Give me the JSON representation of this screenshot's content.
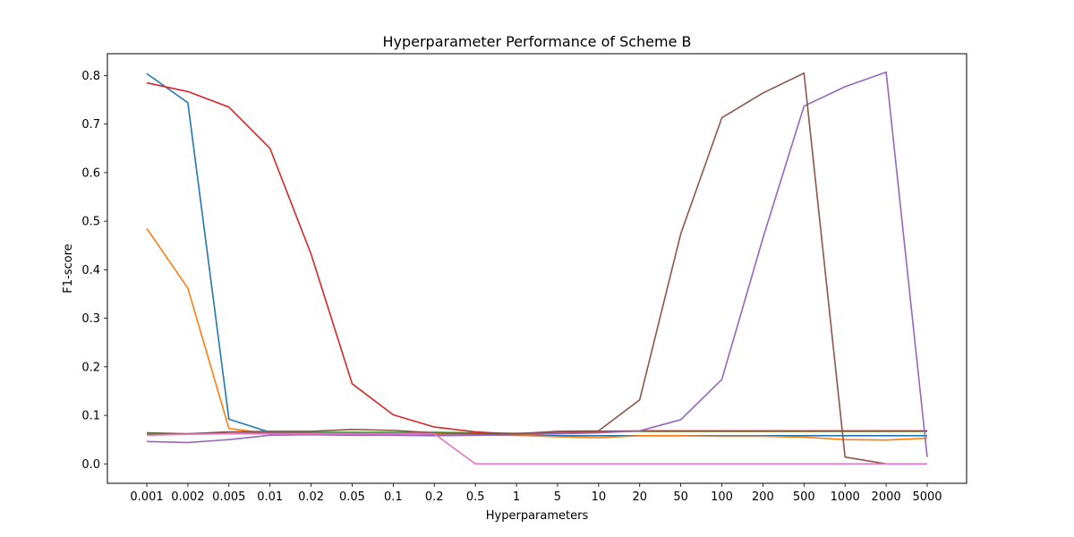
{
  "chart_data": {
    "type": "line",
    "title": "Hyperparameter Performance of Scheme B",
    "xlabel": "Hyperparameters",
    "ylabel": "F1-score",
    "categories": [
      "0.001",
      "0.002",
      "0.005",
      "0.01",
      "0.02",
      "0.05",
      "0.1",
      "0.2",
      "0.5",
      "1",
      "5",
      "10",
      "20",
      "50",
      "100",
      "200",
      "500",
      "1000",
      "2000",
      "5000"
    ],
    "ylim": [
      -0.04,
      0.845
    ],
    "yticks": [
      0.0,
      0.1,
      0.2,
      0.3,
      0.4,
      0.5,
      0.6,
      0.7,
      0.8
    ],
    "ytick_labels": [
      "0.0",
      "0.1",
      "0.2",
      "0.3",
      "0.4",
      "0.5",
      "0.6",
      "0.7",
      "0.8"
    ],
    "grid": false,
    "series": [
      {
        "color": "#1f77b4",
        "values": [
          0.804,
          0.744,
          0.092,
          0.065,
          0.062,
          0.062,
          0.062,
          0.061,
          0.06,
          0.059,
          0.058,
          0.058,
          0.058,
          0.058,
          0.058,
          0.058,
          0.058,
          0.058,
          0.058,
          0.058
        ]
      },
      {
        "color": "#ff7f0e",
        "values": [
          0.485,
          0.362,
          0.073,
          0.062,
          0.062,
          0.062,
          0.062,
          0.062,
          0.061,
          0.059,
          0.056,
          0.054,
          0.058,
          0.058,
          0.057,
          0.057,
          0.055,
          0.05,
          0.049,
          0.053
        ]
      },
      {
        "color": "#2ca02c",
        "values": [
          0.061,
          0.062,
          0.063,
          0.064,
          0.065,
          0.065,
          0.065,
          0.065,
          0.064,
          0.063,
          0.065,
          0.066,
          0.067,
          0.067,
          0.067,
          0.067,
          0.067,
          0.067,
          0.067,
          0.067
        ]
      },
      {
        "color": "#d62728",
        "values": [
          0.785,
          0.767,
          0.735,
          0.65,
          0.432,
          0.165,
          0.101,
          0.076,
          0.066,
          0.061,
          0.066,
          0.067,
          0.068,
          0.068,
          0.068,
          0.068,
          0.068,
          0.068,
          0.068,
          0.068
        ]
      },
      {
        "color": "#9467bd",
        "values": [
          0.046,
          0.044,
          0.05,
          0.059,
          0.06,
          0.059,
          0.059,
          0.058,
          0.059,
          0.06,
          0.062,
          0.064,
          0.068,
          0.091,
          0.174,
          0.465,
          0.737,
          0.777,
          0.807,
          0.014
        ]
      },
      {
        "color": "#8c564b",
        "values": [
          0.064,
          0.062,
          0.066,
          0.067,
          0.067,
          0.071,
          0.069,
          0.064,
          0.062,
          0.062,
          0.067,
          0.068,
          0.132,
          0.474,
          0.713,
          0.764,
          0.805,
          0.014,
          0.0,
          0.0
        ]
      },
      {
        "color": "#e377c2",
        "values": [
          0.059,
          0.061,
          0.062,
          0.062,
          0.062,
          0.062,
          0.062,
          0.062,
          0.0,
          0.0,
          0.0,
          0.0,
          0.0,
          0.0,
          0.0,
          0.0,
          0.0,
          0.0,
          0.0,
          0.0
        ]
      }
    ]
  }
}
